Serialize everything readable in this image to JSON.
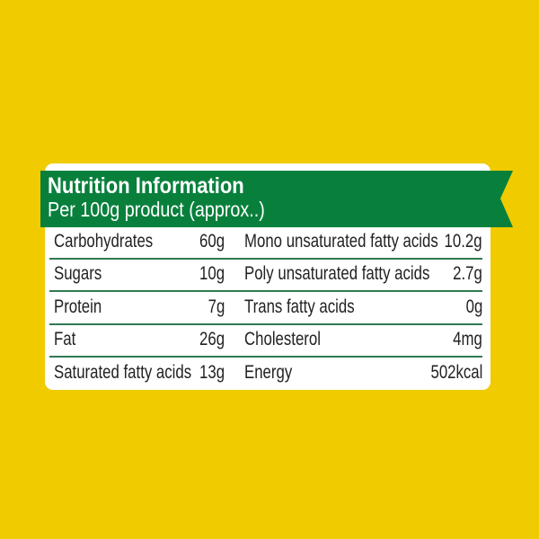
{
  "colors": {
    "background": "#efcb00",
    "banner": "#08803c",
    "card": "#ffffff",
    "divider": "#2f7a52"
  },
  "header": {
    "title": "Nutrition Information",
    "subtitle": "Per 100g product (approx..)"
  },
  "rows": [
    {
      "left_label": "Carbohydrates",
      "left_value": "60g",
      "right_label": "Mono unsaturated fatty acids",
      "right_value": "10.2g"
    },
    {
      "left_label": "Sugars",
      "left_value": "10g",
      "right_label": "Poly unsaturated fatty acids",
      "right_value": "2.7g"
    },
    {
      "left_label": "Protein",
      "left_value": "7g",
      "right_label": "Trans fatty acids",
      "right_value": "0g"
    },
    {
      "left_label": "Fat",
      "left_value": "26g",
      "right_label": "Cholesterol",
      "right_value": "4mg"
    },
    {
      "left_label": "Saturated fatty acids",
      "left_value": "13g",
      "right_label": "Energy",
      "right_value": "502kcal"
    }
  ]
}
